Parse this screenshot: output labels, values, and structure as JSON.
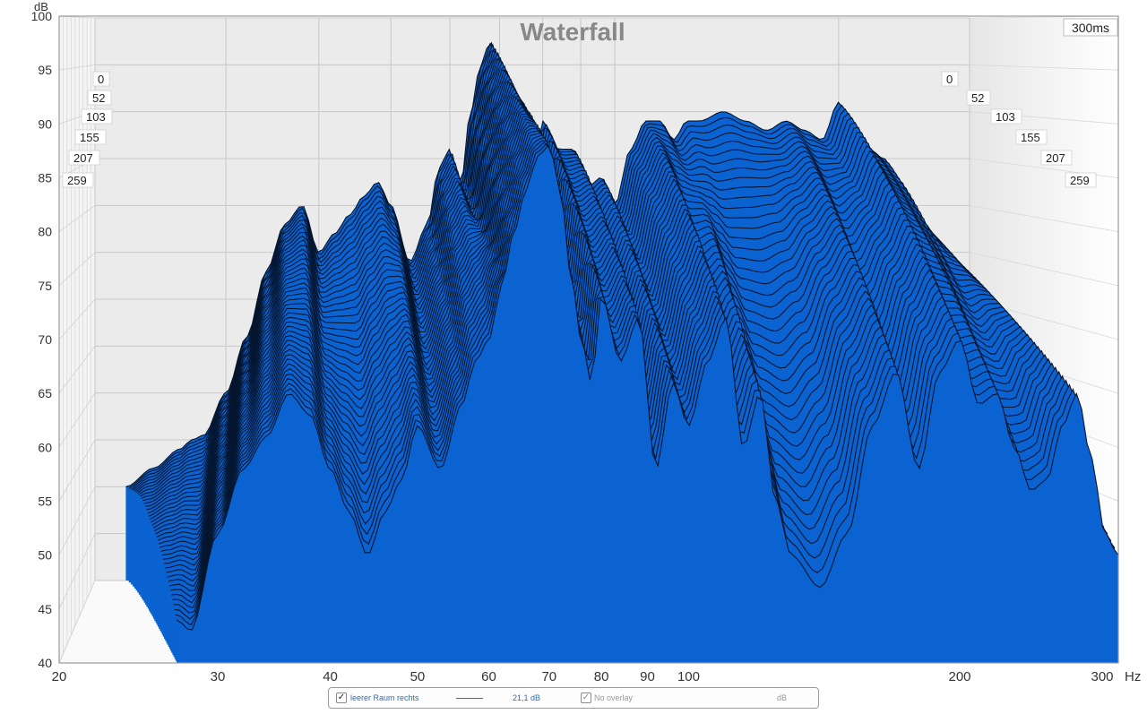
{
  "chart_data": {
    "type": "area",
    "title": "Waterfall",
    "y_unit": "dB",
    "x_unit": "Hz",
    "ylim": [
      40,
      100
    ],
    "xlim": [
      20,
      300
    ],
    "x_scale": "log",
    "x_ticks": [
      {
        "value": 20,
        "label": "20"
      },
      {
        "value": 30,
        "label": "30"
      },
      {
        "value": 40,
        "label": "40"
      },
      {
        "value": 50,
        "label": "50"
      },
      {
        "value": 60,
        "label": "60"
      },
      {
        "value": 70,
        "label": "70"
      },
      {
        "value": 80,
        "label": "80"
      },
      {
        "value": 90,
        "label": "90"
      },
      {
        "value": 100,
        "label": "100"
      },
      {
        "value": 200,
        "label": "200"
      },
      {
        "value": 300,
        "label": "300"
      }
    ],
    "y_ticks": [
      {
        "value": 40,
        "label": "40"
      },
      {
        "value": 45,
        "label": "45"
      },
      {
        "value": 50,
        "label": "50"
      },
      {
        "value": 55,
        "label": "55"
      },
      {
        "value": 60,
        "label": "60"
      },
      {
        "value": 65,
        "label": "65"
      },
      {
        "value": 70,
        "label": "70"
      },
      {
        "value": 75,
        "label": "75"
      },
      {
        "value": 80,
        "label": "80"
      },
      {
        "value": 85,
        "label": "85"
      },
      {
        "value": 90,
        "label": "90"
      },
      {
        "value": 95,
        "label": "95"
      },
      {
        "value": 100,
        "label": "100"
      }
    ],
    "time_axis_label": "300ms",
    "time_slice_labels": [
      "0",
      "52",
      "103",
      "155",
      "207",
      "259"
    ],
    "grid": true,
    "fill_color": "#0b63d1",
    "series": [
      {
        "time_ms": 0,
        "x": [
          22,
          24,
          26,
          27,
          28,
          30,
          32,
          34,
          36,
          38,
          40,
          42,
          44,
          46,
          48,
          50,
          53,
          56,
          58,
          60,
          62,
          64,
          66,
          68,
          70,
          72,
          75,
          78,
          80,
          84,
          88,
          92,
          96,
          100,
          105,
          110,
          115,
          120,
          125,
          130,
          140,
          150,
          160,
          170,
          180,
          190,
          200,
          210,
          220,
          230,
          240,
          250,
          260,
          270,
          280,
          290,
          300
        ],
        "y": [
          50,
          52,
          54,
          55,
          55.5,
          60,
          66,
          73,
          78,
          80,
          75,
          77,
          79,
          81,
          82.5,
          80,
          74,
          78,
          84,
          86,
          82,
          90,
          95,
          97.5,
          94,
          90,
          89,
          85,
          89,
          86,
          86,
          82,
          83,
          80,
          86,
          89,
          89,
          87,
          89,
          89,
          90,
          89,
          88,
          89,
          88,
          87,
          91,
          88,
          86,
          85,
          83,
          80,
          78,
          76,
          73,
          70,
          68
        ]
      },
      {
        "time_ms": 300,
        "x": [
          27,
          28,
          30,
          32,
          34,
          36,
          38,
          40,
          42,
          44,
          46,
          48,
          50,
          53,
          56,
          58,
          60,
          62,
          64,
          66,
          68,
          70,
          72,
          74,
          76,
          78,
          80,
          84,
          88,
          92,
          96,
          100,
          105,
          110,
          115,
          120,
          125,
          130,
          140,
          150,
          160,
          170,
          180,
          190,
          200,
          210,
          220,
          230,
          240,
          250,
          260,
          270,
          280,
          290,
          300
        ],
        "y": [
          44,
          43,
          52,
          58,
          61,
          65,
          63,
          58,
          54,
          50,
          54,
          57,
          62,
          58,
          64,
          68,
          70,
          75,
          80,
          84,
          87,
          88,
          84,
          76,
          70,
          66,
          74,
          68,
          72,
          58,
          66,
          62,
          68,
          72,
          60,
          65,
          55,
          50,
          47,
          52,
          62,
          67,
          58,
          67,
          70,
          64,
          65,
          60,
          56,
          57,
          62,
          65,
          59,
          52,
          50
        ]
      }
    ]
  },
  "legend": {
    "series_label": "leerer Raum rechts",
    "series_value": "21,1 dB",
    "overlay_label": "No overlay",
    "overlay_unit": "dB"
  }
}
